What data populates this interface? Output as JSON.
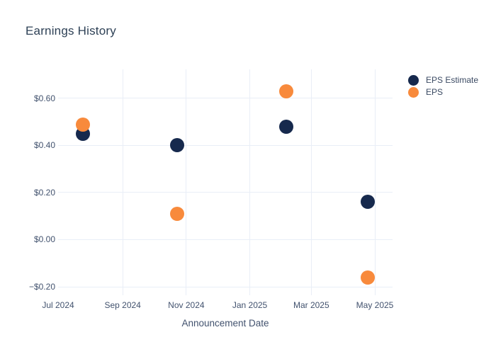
{
  "chart_data": {
    "type": "scatter",
    "title": "Earnings History",
    "xlabel": "Announcement Date",
    "ylabel": "",
    "x_range": [
      "2024-07-01",
      "2025-05-18"
    ],
    "y_range": [
      -0.236,
      0.723
    ],
    "grid": true,
    "grid_color": "#e9eef7",
    "legend_position": "right",
    "xticks": [
      {
        "label": "Jul 2024",
        "date": "2024-07-01"
      },
      {
        "label": "Sep 2024",
        "date": "2024-09-01"
      },
      {
        "label": "Nov 2024",
        "date": "2024-11-01"
      },
      {
        "label": "Jan 2025",
        "date": "2025-01-01"
      },
      {
        "label": "Mar 2025",
        "date": "2025-03-01"
      },
      {
        "label": "May 2025",
        "date": "2025-05-01"
      }
    ],
    "yticks": [
      {
        "label": "$0.60",
        "value": 0.6
      },
      {
        "label": "$0.40",
        "value": 0.4
      },
      {
        "label": "$0.20",
        "value": 0.2
      },
      {
        "label": "$0.00",
        "value": 0.0
      },
      {
        "label": "−$0.20",
        "value": -0.2
      }
    ],
    "series": [
      {
        "name": "EPS Estimate",
        "color": "#16294d",
        "points": [
          {
            "date": "2024-07-25",
            "value": 0.45
          },
          {
            "date": "2024-10-23",
            "value": 0.4
          },
          {
            "date": "2025-02-05",
            "value": 0.48
          },
          {
            "date": "2025-04-24",
            "value": 0.16
          }
        ]
      },
      {
        "name": "EPS",
        "color": "#f88a3c",
        "points": [
          {
            "date": "2024-07-25",
            "value": 0.49
          },
          {
            "date": "2024-10-23",
            "value": 0.11
          },
          {
            "date": "2025-02-05",
            "value": 0.63
          },
          {
            "date": "2025-04-24",
            "value": -0.16
          }
        ]
      }
    ]
  }
}
